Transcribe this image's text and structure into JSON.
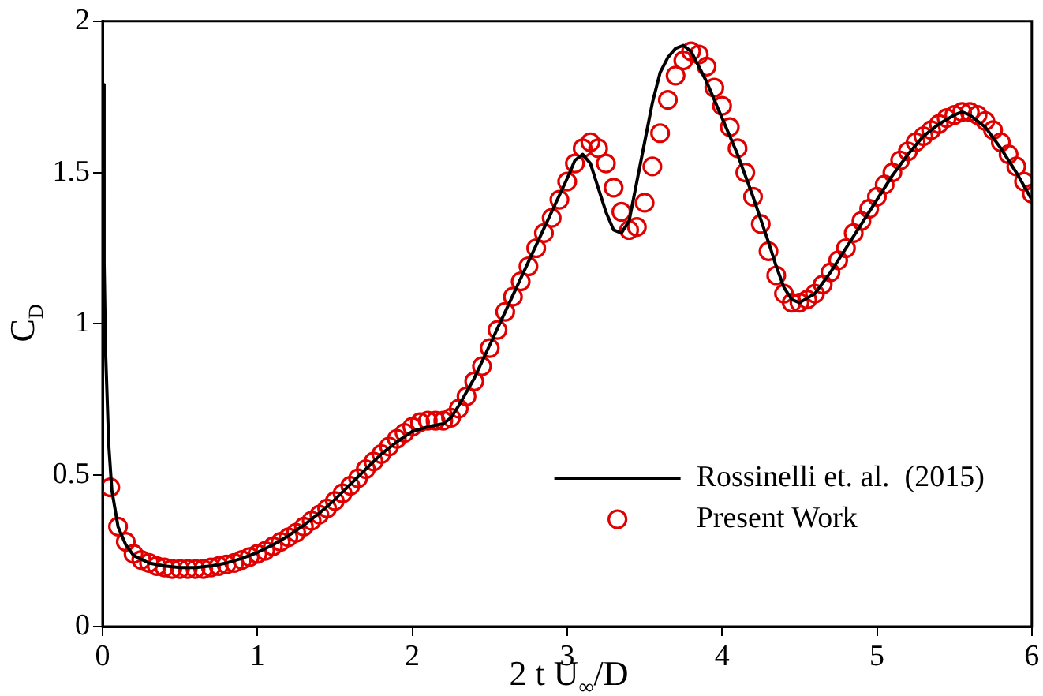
{
  "chart_data": {
    "type": "line",
    "xlabel": "2 t U$_{∞}$/D",
    "ylabel": "C$_{D}$",
    "xlim": [
      0,
      6
    ],
    "xticks": [
      0,
      1,
      2,
      3,
      4,
      5,
      6
    ],
    "ylim": [
      0,
      2
    ],
    "yticks": [
      0,
      0.5,
      1,
      1.5,
      2
    ],
    "grid": false,
    "legend": "bottom right",
    "series": [
      {
        "name": "Rossinelli et. al.  (2015)",
        "type": "line",
        "marker": "none",
        "line_style": "solid",
        "color": "#000000",
        "x": [
          0,
          0.01,
          0.02,
          0.04,
          0.06,
          0.1,
          0.15,
          0.2,
          0.3,
          0.4,
          0.5,
          0.6,
          0.7,
          0.8,
          0.9,
          1.0,
          1.1,
          1.2,
          1.3,
          1.4,
          1.5,
          1.6,
          1.7,
          1.8,
          1.9,
          2.0,
          2.1,
          2.2,
          2.25,
          2.3,
          2.4,
          2.5,
          2.6,
          2.7,
          2.8,
          2.9,
          3.0,
          3.05,
          3.1,
          3.15,
          3.2,
          3.25,
          3.3,
          3.35,
          3.4,
          3.45,
          3.5,
          3.55,
          3.6,
          3.65,
          3.7,
          3.75,
          3.8,
          3.9,
          4.0,
          4.1,
          4.2,
          4.3,
          4.35,
          4.4,
          4.45,
          4.5,
          4.6,
          4.7,
          4.8,
          4.9,
          5.0,
          5.1,
          5.2,
          5.3,
          5.4,
          5.5,
          5.55,
          5.6,
          5.7,
          5.8,
          5.9,
          6.0
        ],
        "values": [
          1.79,
          1.2,
          0.9,
          0.6,
          0.45,
          0.33,
          0.27,
          0.235,
          0.21,
          0.2,
          0.195,
          0.195,
          0.2,
          0.21,
          0.225,
          0.245,
          0.27,
          0.3,
          0.335,
          0.375,
          0.42,
          0.47,
          0.52,
          0.57,
          0.61,
          0.645,
          0.66,
          0.67,
          0.69,
          0.73,
          0.82,
          0.93,
          1.04,
          1.15,
          1.26,
          1.37,
          1.48,
          1.54,
          1.56,
          1.53,
          1.45,
          1.37,
          1.31,
          1.3,
          1.34,
          1.47,
          1.6,
          1.73,
          1.83,
          1.88,
          1.91,
          1.92,
          1.9,
          1.8,
          1.68,
          1.56,
          1.42,
          1.27,
          1.19,
          1.12,
          1.08,
          1.07,
          1.1,
          1.17,
          1.25,
          1.33,
          1.41,
          1.49,
          1.56,
          1.62,
          1.66,
          1.69,
          1.7,
          1.69,
          1.65,
          1.58,
          1.5,
          1.41
        ]
      },
      {
        "name": "Present Work",
        "type": "scatter",
        "marker": "circle",
        "color": "#e00000",
        "x": [
          0.05,
          0.1,
          0.15,
          0.2,
          0.25,
          0.3,
          0.35,
          0.4,
          0.45,
          0.5,
          0.55,
          0.6,
          0.65,
          0.7,
          0.75,
          0.8,
          0.85,
          0.9,
          0.95,
          1.0,
          1.05,
          1.1,
          1.15,
          1.2,
          1.25,
          1.3,
          1.35,
          1.4,
          1.45,
          1.5,
          1.55,
          1.6,
          1.65,
          1.7,
          1.75,
          1.8,
          1.85,
          1.9,
          1.95,
          2.0,
          2.05,
          2.1,
          2.15,
          2.2,
          2.25,
          2.3,
          2.35,
          2.4,
          2.45,
          2.5,
          2.55,
          2.6,
          2.65,
          2.7,
          2.75,
          2.8,
          2.85,
          2.9,
          2.95,
          3.0,
          3.05,
          3.1,
          3.15,
          3.2,
          3.25,
          3.3,
          3.35,
          3.4,
          3.45,
          3.5,
          3.55,
          3.6,
          3.65,
          3.7,
          3.75,
          3.8,
          3.85,
          3.9,
          3.95,
          4.0,
          4.05,
          4.1,
          4.15,
          4.2,
          4.25,
          4.3,
          4.35,
          4.4,
          4.45,
          4.5,
          4.55,
          4.6,
          4.65,
          4.7,
          4.75,
          4.8,
          4.85,
          4.9,
          4.95,
          5.0,
          5.05,
          5.1,
          5.15,
          5.2,
          5.25,
          5.3,
          5.35,
          5.4,
          5.45,
          5.5,
          5.55,
          5.6,
          5.65,
          5.7,
          5.75,
          5.8,
          5.85,
          5.9,
          5.95,
          6.0
        ],
        "values": [
          0.46,
          0.33,
          0.28,
          0.24,
          0.22,
          0.21,
          0.2,
          0.195,
          0.19,
          0.19,
          0.19,
          0.19,
          0.19,
          0.195,
          0.2,
          0.205,
          0.21,
          0.22,
          0.23,
          0.24,
          0.25,
          0.265,
          0.28,
          0.295,
          0.31,
          0.33,
          0.35,
          0.37,
          0.39,
          0.415,
          0.44,
          0.465,
          0.49,
          0.52,
          0.545,
          0.57,
          0.595,
          0.62,
          0.64,
          0.66,
          0.675,
          0.68,
          0.68,
          0.68,
          0.69,
          0.72,
          0.76,
          0.81,
          0.86,
          0.92,
          0.98,
          1.04,
          1.09,
          1.14,
          1.19,
          1.25,
          1.3,
          1.35,
          1.41,
          1.47,
          1.53,
          1.58,
          1.6,
          1.58,
          1.53,
          1.45,
          1.37,
          1.31,
          1.32,
          1.4,
          1.52,
          1.63,
          1.74,
          1.82,
          1.87,
          1.9,
          1.89,
          1.85,
          1.78,
          1.72,
          1.65,
          1.58,
          1.5,
          1.42,
          1.33,
          1.24,
          1.16,
          1.1,
          1.07,
          1.07,
          1.08,
          1.1,
          1.13,
          1.17,
          1.21,
          1.25,
          1.3,
          1.34,
          1.38,
          1.42,
          1.46,
          1.5,
          1.54,
          1.57,
          1.6,
          1.62,
          1.64,
          1.66,
          1.68,
          1.69,
          1.7,
          1.7,
          1.69,
          1.67,
          1.64,
          1.6,
          1.56,
          1.52,
          1.47,
          1.43
        ]
      }
    ]
  }
}
